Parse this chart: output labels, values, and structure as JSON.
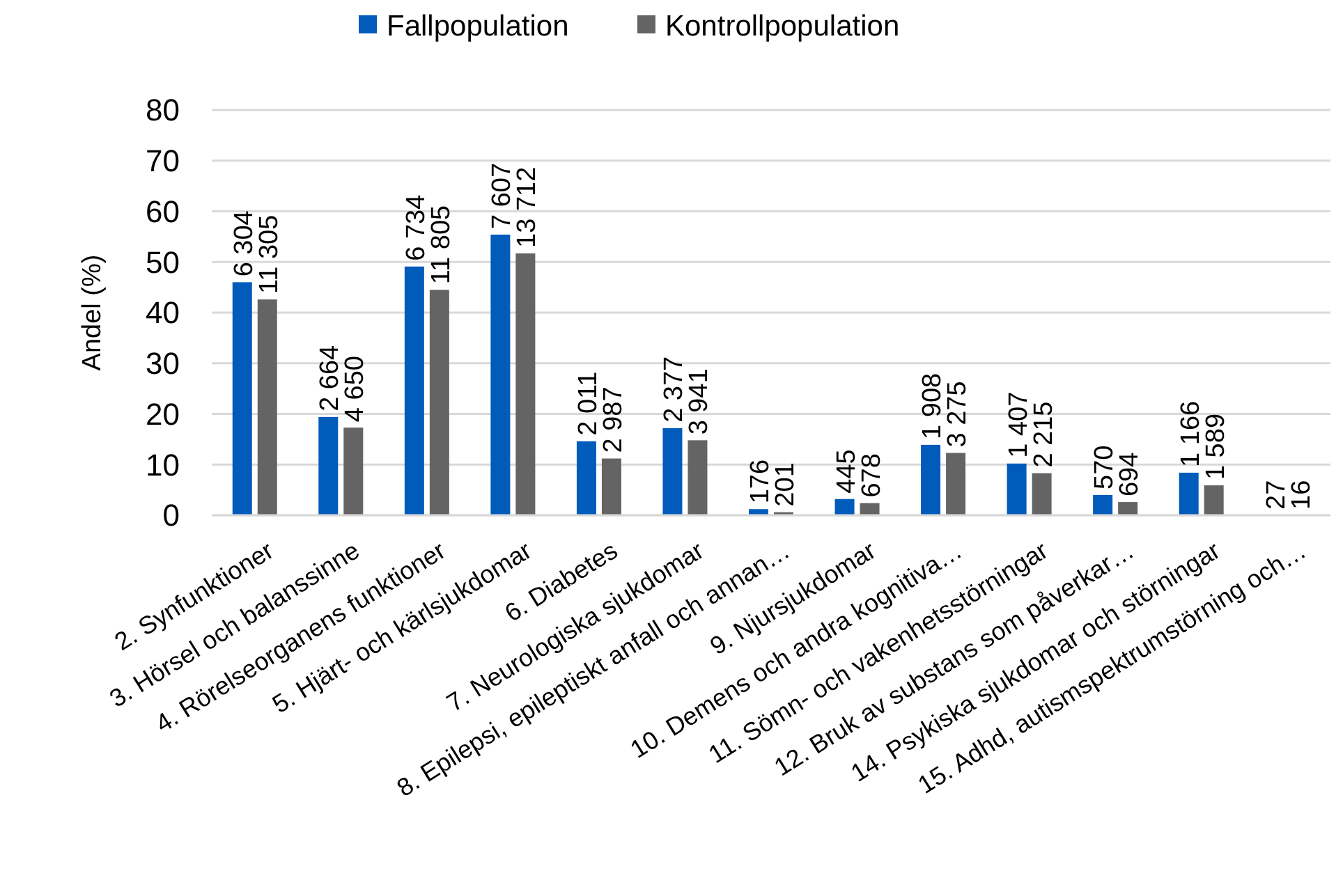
{
  "chart_data": {
    "type": "bar",
    "ylabel": "Andel (%)",
    "categories": [
      "2. Synfunktioner",
      "3. Hörsel och balanssinne",
      "4. Rörelseorganens funktioner",
      "5. Hjärt- och kärlsjukdomar",
      "6. Diabetes",
      "7. Neurologiska sjukdomar",
      "8. Epilepsi, epileptiskt anfall och annan…",
      "9. Njursjukdomar",
      "10. Demens och andra kognitiva…",
      "11. Sömn- och vakenhetsstörningar",
      "12. Bruk av substans som påverkar…",
      "14. Psykiska sjukdomar och störningar",
      "15. Adhd, autismspektrumstörning och…"
    ],
    "series": [
      {
        "name": "Fallpopulation",
        "color": "#005bbb",
        "values": [
          46.0,
          19.4,
          49.1,
          55.4,
          14.6,
          17.2,
          1.2,
          3.2,
          13.9,
          10.2,
          4.0,
          8.4,
          null
        ]
      },
      {
        "name": "Kontrollpopulation",
        "color": "#646464",
        "values": [
          42.6,
          17.3,
          44.5,
          51.7,
          11.2,
          14.8,
          0.6,
          2.4,
          12.3,
          8.3,
          2.6,
          5.9,
          null
        ]
      }
    ],
    "annotations": [
      "6 304",
      "2 664",
      "6 734",
      "7 607",
      "2 011",
      "2 377",
      "176",
      "445",
      "1 908",
      "1 407",
      "570",
      "1 166",
      "27",
      "11 305",
      "4 650",
      "11 805",
      "13 712",
      "2 987",
      "3 941",
      "201",
      "678",
      "3 275",
      "2 215",
      "694",
      "1 589",
      "16"
    ],
    "ylim": [
      0,
      80
    ],
    "yticks": [
      0,
      10,
      20,
      30,
      40,
      50,
      60,
      70,
      80
    ],
    "grid": "y",
    "legend": "top"
  }
}
